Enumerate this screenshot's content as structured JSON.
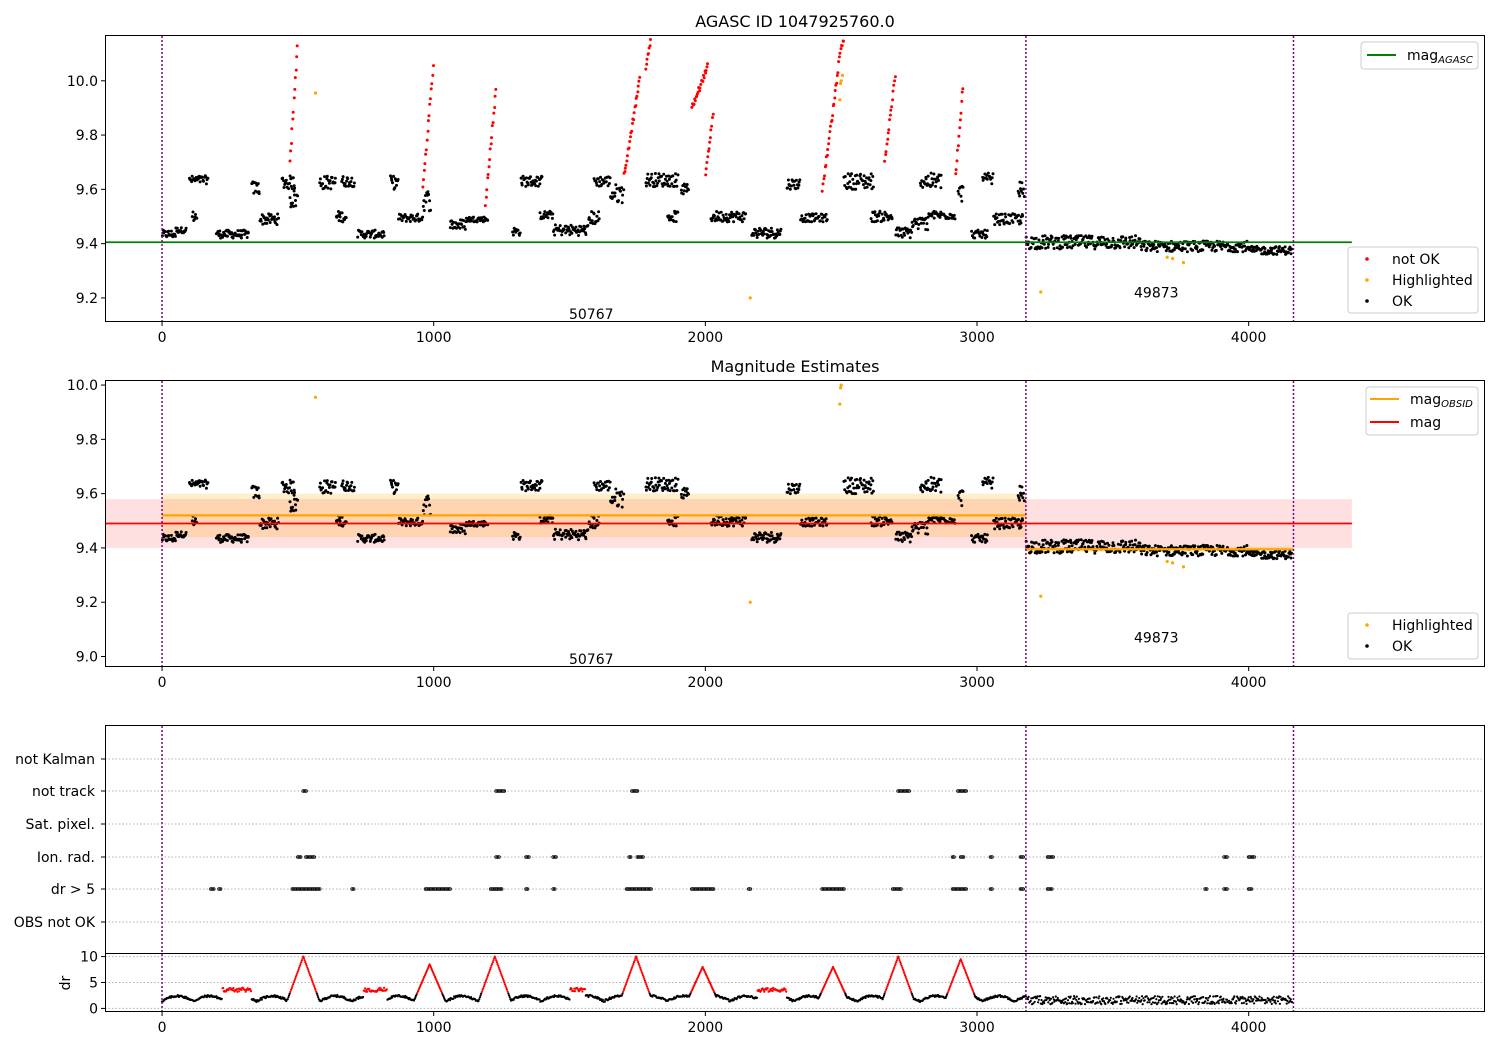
{
  "colors": {
    "ok": "#000000",
    "not_ok": "#ff0000",
    "highlighted": "#ffa500",
    "agasc": "#008000",
    "mag": "#ff0000",
    "mag_obsid": "#ffa500",
    "obs_boundary": "#800080"
  },
  "chart_data": [
    {
      "type": "scatter",
      "title": "AGASC ID 1047925760.0",
      "xlim": [
        -210,
        4870
      ],
      "ylim": [
        9.115,
        10.165
      ],
      "xticks": [
        0,
        1000,
        2000,
        3000,
        4000
      ],
      "yticks": [
        "9.2",
        "9.4",
        "9.6",
        "9.8",
        "10.0"
      ],
      "grid": false,
      "legend_upper": {
        "position": "top-right",
        "entries": [
          "mag_AGASC"
        ]
      },
      "legend_lower": {
        "position": "bottom-right",
        "entries": [
          "not OK",
          "Highlighted",
          "OK"
        ]
      },
      "annotations": [
        {
          "text": "50767",
          "x": 1580,
          "y": 9.14
        },
        {
          "text": "49873",
          "x": 3660,
          "y": 9.22
        }
      ],
      "obs_boundaries": [
        0,
        3180,
        4165
      ],
      "mag_agasc": {
        "value": 9.405,
        "x": [
          -210,
          4380
        ]
      },
      "series": [
        {
          "name": "OK",
          "kind": "ok",
          "segments": [
            [
              0,
              50,
              9.42,
              9.45
            ],
            [
              50,
              90,
              9.44,
              9.46
            ],
            [
              100,
              170,
              9.62,
              9.65
            ],
            [
              110,
              130,
              9.48,
              9.52
            ],
            [
              200,
              320,
              9.42,
              9.45
            ],
            [
              330,
              360,
              9.58,
              9.63
            ],
            [
              360,
              430,
              9.47,
              9.51
            ],
            [
              440,
              490,
              9.6,
              9.65
            ],
            [
              470,
              500,
              9.53,
              9.6
            ],
            [
              580,
              640,
              9.6,
              9.65
            ],
            [
              640,
              680,
              9.48,
              9.52
            ],
            [
              660,
              710,
              9.61,
              9.65
            ],
            [
              720,
              820,
              9.42,
              9.45
            ],
            [
              840,
              870,
              9.6,
              9.65
            ],
            [
              870,
              960,
              9.48,
              9.51
            ],
            [
              960,
              990,
              9.52,
              9.6
            ],
            [
              1060,
              1120,
              9.45,
              9.49
            ],
            [
              1120,
              1200,
              9.48,
              9.5
            ],
            [
              1290,
              1320,
              9.43,
              9.46
            ],
            [
              1320,
              1400,
              9.61,
              9.65
            ],
            [
              1390,
              1440,
              9.49,
              9.52
            ],
            [
              1440,
              1570,
              9.43,
              9.47
            ],
            [
              1570,
              1610,
              9.47,
              9.52
            ],
            [
              1590,
              1650,
              9.61,
              9.65
            ],
            [
              1650,
              1700,
              9.55,
              9.62
            ],
            [
              1780,
              1900,
              9.61,
              9.66
            ],
            [
              1860,
              1900,
              9.48,
              9.52
            ],
            [
              1910,
              1940,
              9.58,
              9.62
            ],
            [
              2020,
              2150,
              9.48,
              9.52
            ],
            [
              2170,
              2280,
              9.42,
              9.46
            ],
            [
              2300,
              2350,
              9.6,
              9.64
            ],
            [
              2350,
              2450,
              9.48,
              9.51
            ],
            [
              2510,
              2620,
              9.6,
              9.66
            ],
            [
              2610,
              2690,
              9.48,
              9.52
            ],
            [
              2700,
              2760,
              9.42,
              9.46
            ],
            [
              2760,
              2820,
              9.45,
              9.5
            ],
            [
              2790,
              2870,
              9.6,
              9.66
            ],
            [
              2820,
              2920,
              9.49,
              9.52
            ],
            [
              2930,
              2950,
              9.55,
              9.62
            ],
            [
              2980,
              3040,
              9.42,
              9.45
            ],
            [
              3020,
              3060,
              9.61,
              9.66
            ],
            [
              3060,
              3170,
              9.47,
              9.51
            ],
            [
              3150,
              3175,
              9.55,
              9.63
            ],
            [
              3180,
              3600,
              9.38,
              9.43
            ],
            [
              3600,
              4000,
              9.37,
              9.41
            ],
            [
              4000,
              4160,
              9.36,
              9.39
            ]
          ]
        },
        {
          "name": "not OK",
          "kind": "not_ok",
          "segments": [
            [
              470,
              500,
              9.7,
              10.16
            ],
            [
              960,
              1000,
              9.6,
              10.09
            ],
            [
              1190,
              1230,
              9.55,
              9.99
            ],
            [
              1700,
              1760,
              9.65,
              10.02
            ],
            [
              1780,
              1800,
              10.05,
              10.16
            ],
            [
              1950,
              2010,
              9.9,
              10.06
            ],
            [
              2000,
              2030,
              9.65,
              9.9
            ],
            [
              2430,
              2490,
              9.6,
              10.05
            ],
            [
              2490,
              2510,
              10.08,
              10.16
            ],
            [
              2660,
              2700,
              9.7,
              10.04
            ],
            [
              2920,
              2950,
              9.65,
              10.01
            ]
          ]
        },
        {
          "name": "Highlighted",
          "kind": "highlighted",
          "points": [
            [
              565,
              9.955
            ],
            [
              2165,
              9.2
            ],
            [
              2495,
              9.93
            ],
            [
              2500,
              10.0
            ],
            [
              2505,
              10.02
            ],
            [
              2498,
              9.99
            ],
            [
              3235,
              9.222
            ],
            [
              3700,
              9.35
            ],
            [
              3720,
              9.345
            ],
            [
              3760,
              9.33
            ]
          ]
        }
      ]
    },
    {
      "type": "scatter",
      "title": "Magnitude Estimates",
      "xlim": [
        -210,
        4870
      ],
      "ylim": [
        8.965,
        10.015
      ],
      "xticks": [
        0,
        1000,
        2000,
        3000,
        4000
      ],
      "yticks": [
        "9.0",
        "9.2",
        "9.4",
        "9.6",
        "9.8",
        "10.0"
      ],
      "grid": false,
      "legend_upper": {
        "position": "top-right",
        "entries": [
          "mag_OBSID",
          "mag"
        ]
      },
      "legend_lower": {
        "position": "bottom-right",
        "entries": [
          "Highlighted",
          "OK"
        ]
      },
      "annotations": [
        {
          "text": "50767",
          "x": 1580,
          "y": 8.99
        },
        {
          "text": "49873",
          "x": 3660,
          "y": 9.07
        }
      ],
      "obs_boundaries": [
        0,
        3180,
        4165
      ],
      "mag": {
        "value": 9.49,
        "band": [
          9.4,
          9.58
        ],
        "x": [
          -210,
          4380
        ]
      },
      "mag_obsid": [
        {
          "value": 9.52,
          "band": [
            9.44,
            9.6
          ],
          "x": [
            0,
            3180
          ]
        },
        {
          "value": 9.395,
          "band": [
            9.385,
            9.405
          ],
          "x": [
            3180,
            4165
          ]
        }
      ],
      "series_ref": "same points as panel 1 (not OK points shown only within this y-range)"
    },
    {
      "type": "scatter",
      "title": "",
      "xlim": [
        -210,
        4870
      ],
      "obs_boundaries": [
        0,
        3180,
        4165
      ],
      "categories": [
        "not Kalman",
        "not track",
        "Sat. pixel.",
        "Ion. rad.",
        "dr > 5",
        "OBS not OK"
      ],
      "grid": "horizontal dotted",
      "flags": {
        "not track": [
          [
            520,
            530
          ],
          [
            1230,
            1260
          ],
          [
            1730,
            1750
          ],
          [
            2710,
            2750
          ],
          [
            2930,
            2960
          ]
        ],
        "Ion. rad.": [
          [
            500,
            510
          ],
          [
            530,
            560
          ],
          [
            1230,
            1240
          ],
          [
            1340,
            1350
          ],
          [
            1440,
            1450
          ],
          [
            1720,
            1725
          ],
          [
            1750,
            1770
          ],
          [
            2910,
            2915
          ],
          [
            2940,
            2950
          ],
          [
            3050,
            3055
          ],
          [
            3160,
            3170
          ],
          [
            3260,
            3280
          ],
          [
            3910,
            3920
          ],
          [
            4000,
            4020
          ]
        ],
        "dr > 5": [
          [
            180,
            190
          ],
          [
            210,
            215
          ],
          [
            480,
            580
          ],
          [
            700,
            705
          ],
          [
            970,
            1060
          ],
          [
            1210,
            1250
          ],
          [
            1340,
            1345
          ],
          [
            1440,
            1445
          ],
          [
            1710,
            1800
          ],
          [
            1950,
            2030
          ],
          [
            2160,
            2165
          ],
          [
            2430,
            2510
          ],
          [
            2690,
            2720
          ],
          [
            2910,
            2960
          ],
          [
            3050,
            3055
          ],
          [
            3160,
            3170
          ],
          [
            3260,
            3275
          ],
          [
            3840,
            3845
          ],
          [
            3910,
            3920
          ],
          [
            4000,
            4010
          ]
        ]
      }
    },
    {
      "type": "line",
      "ylabel": "dr",
      "xlim": [
        -210,
        4870
      ],
      "ylim": [
        -0.5,
        10.5
      ],
      "xticks": [
        0,
        1000,
        2000,
        3000,
        4000
      ],
      "yticks": [
        "0",
        "5",
        "10"
      ],
      "obs_boundaries": [
        0,
        3180,
        4165
      ],
      "threshold": 5
    }
  ]
}
